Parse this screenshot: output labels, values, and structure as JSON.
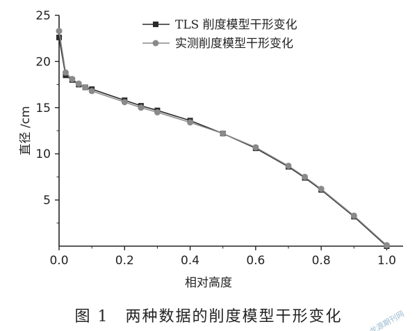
{
  "chart_data": {
    "type": "line",
    "xlabel": "相对高度",
    "ylabel": "直径 /cm",
    "xlim": [
      0.0,
      1.05
    ],
    "ylim": [
      0,
      25
    ],
    "xticks": [
      0.0,
      0.2,
      0.4,
      0.6,
      0.8,
      1.0
    ],
    "xtick_labels": [
      "0.0",
      "0.2",
      "0.4",
      "0.6",
      "0.8",
      "1.0"
    ],
    "yticks": [
      5,
      10,
      15,
      20,
      25
    ],
    "ytick_labels": [
      "5",
      "10",
      "15",
      "20",
      "25"
    ],
    "grid": false,
    "legend_position": "top-center",
    "series": [
      {
        "name": "TLS 削度模型干形变化",
        "marker": "square",
        "color": "#2a2a2a",
        "x": [
          0.0,
          0.02,
          0.04,
          0.06,
          0.08,
          0.1,
          0.2,
          0.25,
          0.3,
          0.4,
          0.5,
          0.6,
          0.7,
          0.75,
          0.8,
          0.9,
          1.0
        ],
        "y": [
          22.6,
          18.5,
          18.0,
          17.5,
          17.2,
          17.0,
          15.8,
          15.2,
          14.7,
          13.6,
          12.2,
          10.6,
          8.6,
          7.4,
          6.1,
          3.2,
          0.0
        ]
      },
      {
        "name": "实测削度模型干形变化",
        "marker": "circle",
        "color": "#8a8a8a",
        "x": [
          0.0,
          0.02,
          0.04,
          0.06,
          0.08,
          0.1,
          0.2,
          0.25,
          0.3,
          0.4,
          0.5,
          0.6,
          0.7,
          0.75,
          0.8,
          0.9,
          1.0
        ],
        "y": [
          23.3,
          18.8,
          18.1,
          17.6,
          17.2,
          16.8,
          15.6,
          15.0,
          14.5,
          13.4,
          12.2,
          10.7,
          8.7,
          7.5,
          6.2,
          3.3,
          0.1
        ]
      }
    ]
  },
  "caption": "图 1　两种数据的削度模型干形变化",
  "watermark": "龙源期刊网"
}
